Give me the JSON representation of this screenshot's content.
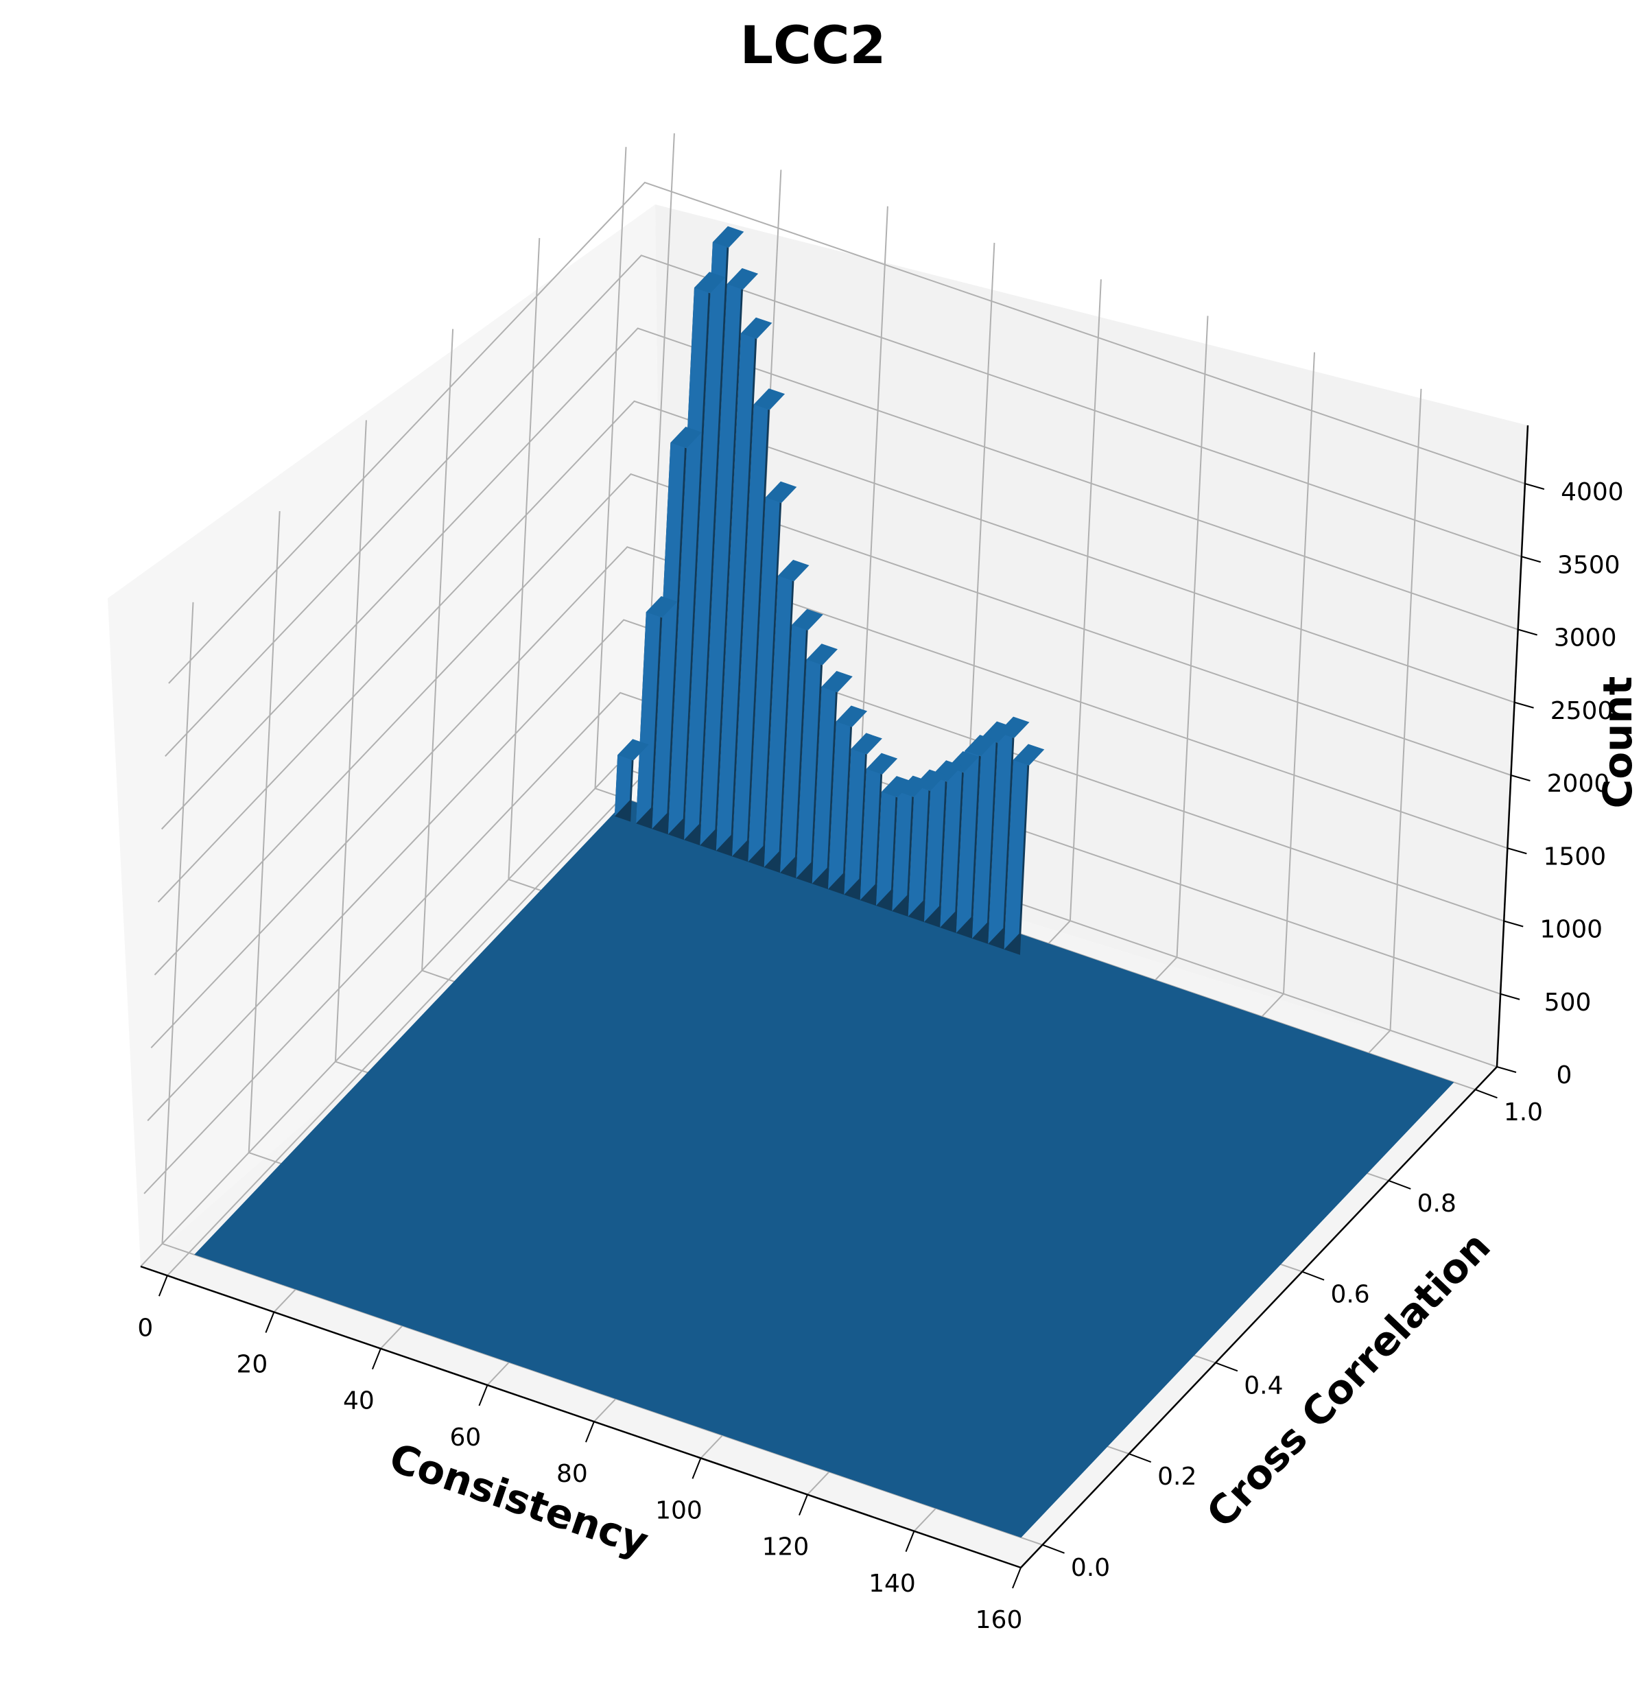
{
  "chart_data": {
    "type": "bar3d",
    "title": "LCC2",
    "xlabel": "Consistency",
    "ylabel": "Cross Correlation",
    "zlabel": "Count",
    "x_ticks": [
      "0",
      "20",
      "40",
      "60",
      "80",
      "100",
      "120",
      "140",
      "160"
    ],
    "y_ticks": [
      "0.0",
      "0.2",
      "0.4",
      "0.6",
      "0.8",
      "1.0"
    ],
    "z_ticks": [
      "0",
      "500",
      "1000",
      "1500",
      "2000",
      "2500",
      "3000",
      "3500",
      "4000"
    ],
    "xlim": [
      -5,
      160
    ],
    "ylim": [
      -0.05,
      1.05
    ],
    "zlim": [
      0,
      4400
    ],
    "x_range": [
      1,
      156
    ],
    "y_range": [
      0,
      1
    ],
    "ridge": {
      "y": 1.0,
      "x": [
        3,
        7,
        10,
        13,
        16,
        19,
        22,
        25,
        28,
        31,
        34,
        37,
        40,
        43,
        46,
        49,
        52,
        55,
        58,
        61,
        64,
        67,
        70,
        73,
        76
      ],
      "values": [
        420,
        1450,
        2650,
        3750,
        4100,
        3850,
        3550,
        3100,
        2500,
        2000,
        1700,
        1500,
        1350,
        1150,
        1000,
        900,
        780,
        820,
        900,
        1000,
        1100,
        1250,
        1380,
        1450,
        1300
      ]
    },
    "grid": true,
    "color": "#1f6fae"
  }
}
